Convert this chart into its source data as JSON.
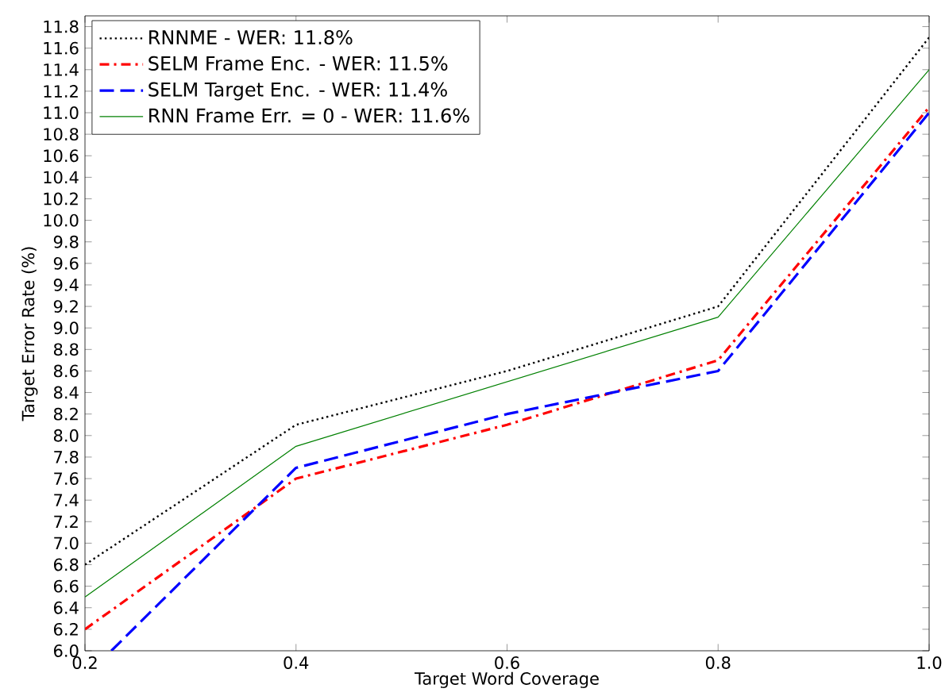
{
  "chart_data": {
    "type": "line",
    "xlabel": "Target Word Coverage",
    "ylabel": "Target Error Rate (%)",
    "x": [
      0.2,
      0.4,
      0.6,
      0.8,
      1.0
    ],
    "series": [
      {
        "name": "RNNME - WER: 11.8%",
        "color": "#000000",
        "line_style": "dotted",
        "values": [
          6.8,
          8.1,
          8.6,
          9.2,
          11.7
        ]
      },
      {
        "name": "SELM Frame Enc. - WER: 11.5%",
        "color": "#ff0000",
        "line_style": "dashdot",
        "values": [
          6.2,
          7.6,
          8.1,
          8.7,
          11.05
        ]
      },
      {
        "name": "SELM Target Enc. - WER: 11.4%",
        "color": "#0000ff",
        "line_style": "dashed",
        "x": [
          0.225,
          0.4,
          0.6,
          0.8,
          1.0
        ],
        "values": [
          6.0,
          7.7,
          8.2,
          8.6,
          11.0
        ]
      },
      {
        "name": "RNN Frame Err. = 0 - WER: 11.6%",
        "color": "#008000",
        "line_style": "solid",
        "values": [
          6.5,
          7.9,
          8.5,
          9.1,
          11.4
        ]
      }
    ],
    "xlim": [
      0.2,
      1.0
    ],
    "ylim": [
      6.0,
      11.9
    ],
    "xticks": [
      {
        "value": 0.2,
        "label": "0.2"
      },
      {
        "value": 0.4,
        "label": "0.4"
      },
      {
        "value": 0.6,
        "label": "0.6"
      },
      {
        "value": 0.8,
        "label": "0.8"
      },
      {
        "value": 1.0,
        "label": "1.0"
      }
    ],
    "yticks": [
      {
        "value": 6.0,
        "label": "6.0"
      },
      {
        "value": 6.2,
        "label": "6.2"
      },
      {
        "value": 6.4,
        "label": "6.4"
      },
      {
        "value": 6.6,
        "label": "6.6"
      },
      {
        "value": 6.8,
        "label": "6.8"
      },
      {
        "value": 7.0,
        "label": "7.0"
      },
      {
        "value": 7.2,
        "label": "7.2"
      },
      {
        "value": 7.4,
        "label": "7.4"
      },
      {
        "value": 7.6,
        "label": "7.6"
      },
      {
        "value": 7.8,
        "label": "7.8"
      },
      {
        "value": 8.0,
        "label": "8.0"
      },
      {
        "value": 8.2,
        "label": "8.2"
      },
      {
        "value": 8.4,
        "label": "8.4"
      },
      {
        "value": 8.6,
        "label": "8.6"
      },
      {
        "value": 8.8,
        "label": "8.8"
      },
      {
        "value": 9.0,
        "label": "9.0"
      },
      {
        "value": 9.2,
        "label": "9.2"
      },
      {
        "value": 9.4,
        "label": "9.4"
      },
      {
        "value": 9.6,
        "label": "9.6"
      },
      {
        "value": 9.8,
        "label": "9.8"
      },
      {
        "value": 10.0,
        "label": "10.0"
      },
      {
        "value": 10.2,
        "label": "10.2"
      },
      {
        "value": 10.4,
        "label": "10.4"
      },
      {
        "value": 10.6,
        "label": "10.6"
      },
      {
        "value": 10.8,
        "label": "10.8"
      },
      {
        "value": 11.0,
        "label": "11.0"
      },
      {
        "value": 11.2,
        "label": "11.2"
      },
      {
        "value": 11.4,
        "label": "11.4"
      },
      {
        "value": 11.6,
        "label": "11.6"
      },
      {
        "value": 11.8,
        "label": "11.8"
      }
    ],
    "grid": false,
    "legend": "top left",
    "marker": "none"
  }
}
